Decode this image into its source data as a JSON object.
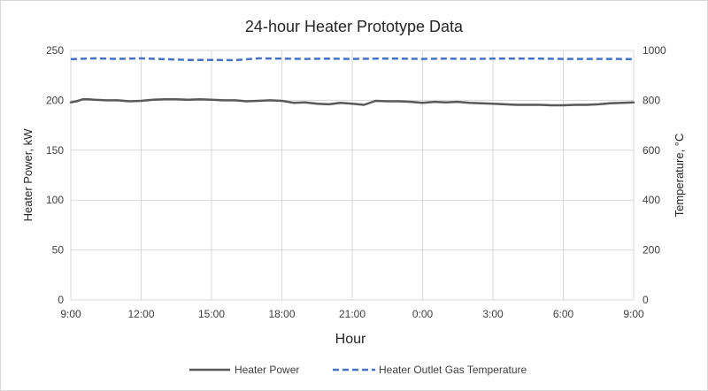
{
  "chart_data": {
    "type": "line",
    "title": "24-hour Heater Prototype Data",
    "xlabel": "Hour",
    "ylabel_left": "Heater Power, kW",
    "ylabel_right": "Temperature, °C",
    "x_tick_labels": [
      "9:00",
      "12:00",
      "15:00",
      "18:00",
      "21:00",
      "0:00",
      "3:00",
      "6:00",
      "9:00"
    ],
    "xlim": [
      0,
      24
    ],
    "ylim_left": [
      0,
      250
    ],
    "ylim_right": [
      0,
      1000
    ],
    "y_ticks_left": [
      "0",
      "50",
      "100",
      "150",
      "200",
      "250"
    ],
    "y_ticks_right": [
      "0",
      "200",
      "400",
      "600",
      "800",
      "1000"
    ],
    "grid": true,
    "legend_position": "bottom",
    "series": [
      {
        "name": "Heater Power",
        "axis": "left",
        "color": "#595959",
        "style": "solid",
        "x": [
          0,
          0.25,
          0.5,
          0.75,
          1,
          1.5,
          2,
          2.5,
          3,
          3.5,
          4,
          4.5,
          5,
          5.5,
          6,
          6.5,
          7,
          7.5,
          8,
          8.5,
          9,
          9.5,
          10,
          10.5,
          11,
          11.5,
          12,
          12.5,
          13,
          13.5,
          14,
          14.5,
          15,
          15.5,
          16,
          16.5,
          17,
          17.5,
          18,
          18.5,
          19,
          19.5,
          20,
          20.5,
          21,
          21.5,
          22,
          22.5,
          23,
          23.5,
          24
        ],
        "values": [
          198,
          199,
          201,
          201,
          200.5,
          200,
          200,
          199,
          199.5,
          200.5,
          201,
          201,
          200.5,
          201,
          200.5,
          200,
          200,
          199,
          199.5,
          200,
          199.5,
          197.5,
          198,
          196.5,
          196,
          197.5,
          196.5,
          195.5,
          199.5,
          199,
          199,
          198.5,
          197.5,
          198.5,
          198,
          198.5,
          197.5,
          197,
          196.5,
          196,
          195.5,
          195.5,
          195.5,
          195,
          195,
          195.5,
          195.5,
          196,
          197,
          197.5,
          198
        ]
      },
      {
        "name": "Heater Outlet Gas Temperature",
        "axis": "right",
        "color": "#4472c4",
        "style": "dashed",
        "x": [
          0,
          1,
          2,
          3,
          4,
          5,
          6,
          7,
          8,
          9,
          10,
          11,
          12,
          13,
          14,
          15,
          16,
          17,
          18,
          19,
          20,
          21,
          22,
          23,
          24
        ],
        "values": [
          965,
          968,
          966,
          968,
          965,
          962,
          962,
          961,
          968,
          967,
          966,
          967,
          966,
          967,
          967,
          966,
          967,
          966,
          967,
          967,
          967,
          966,
          966,
          966,
          965
        ]
      }
    ]
  }
}
